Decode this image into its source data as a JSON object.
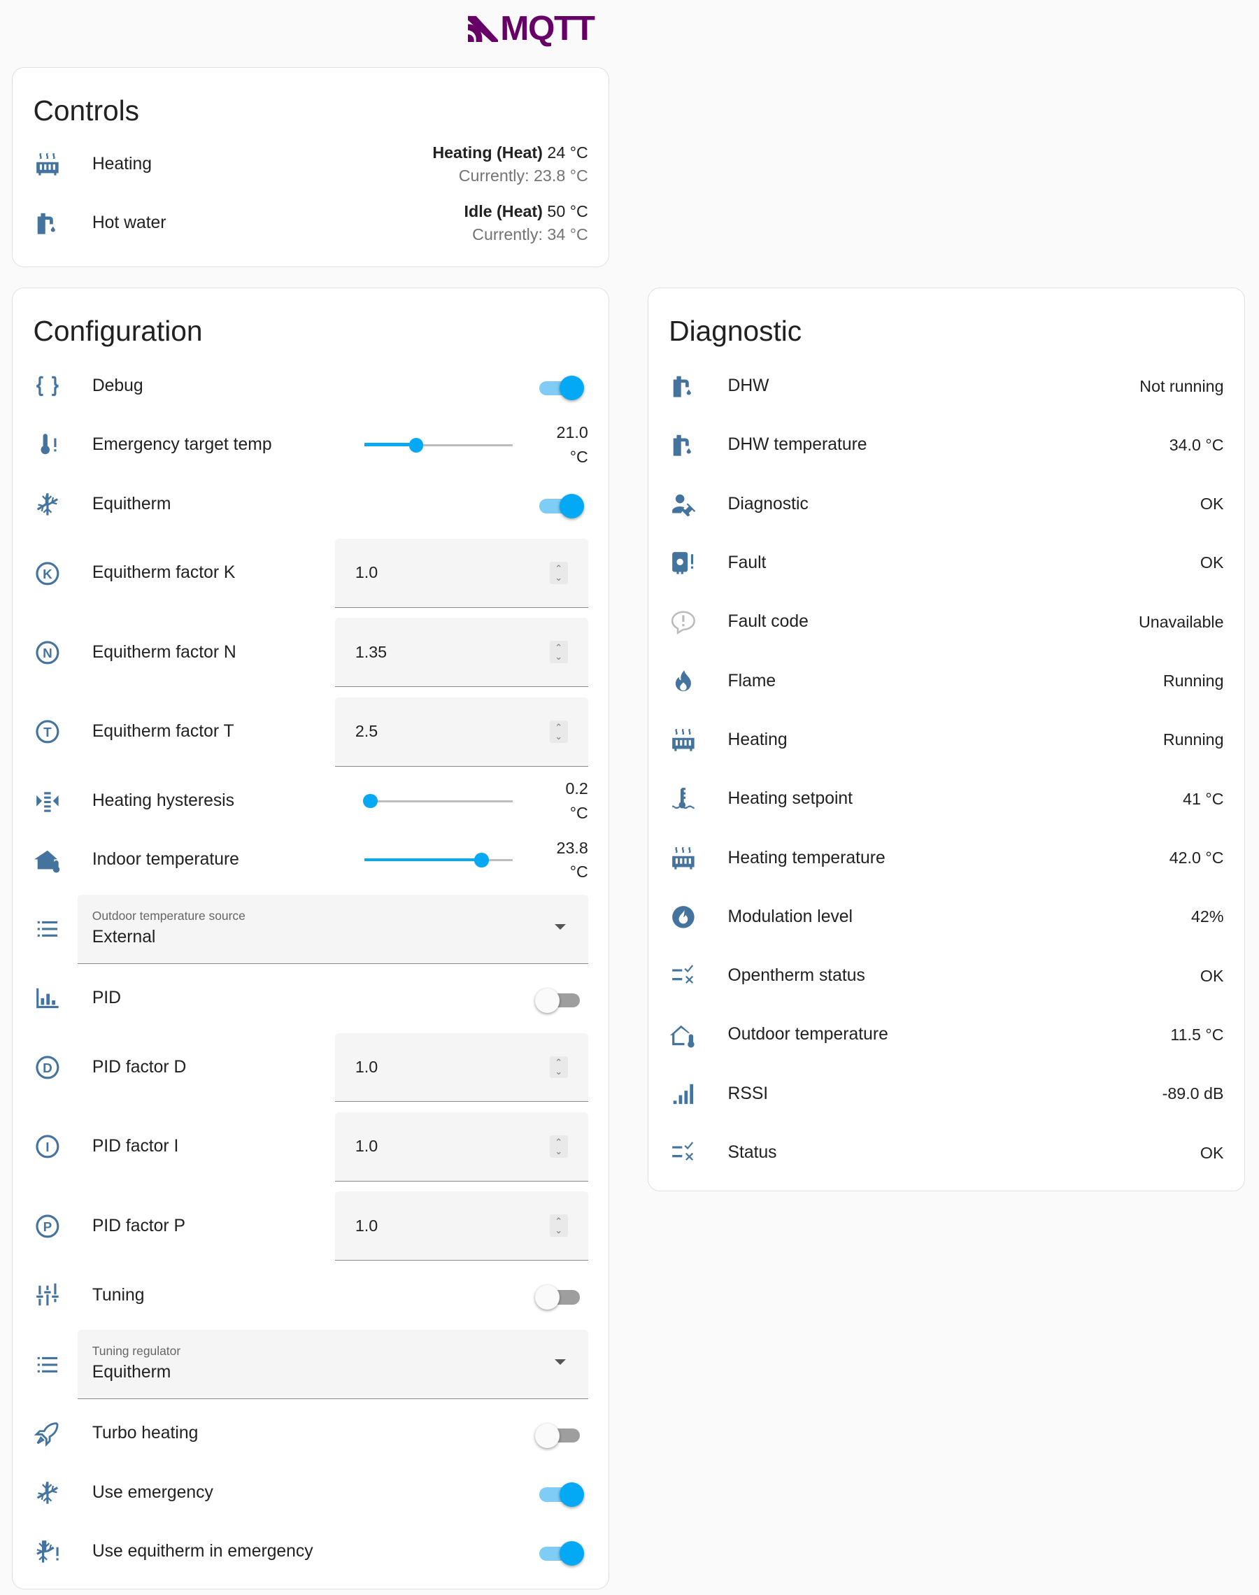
{
  "logo": {
    "text": "MQTT",
    "color": "#660066"
  },
  "icon_color": "#44739e",
  "accent": "#03a9f4",
  "controls": {
    "title": "Controls",
    "items": [
      {
        "icon": "radiator-icon",
        "name": "Heating",
        "state": "Heating (Heat)",
        "target": "24 °C",
        "current": "Currently: 23.8 °C"
      },
      {
        "icon": "water-pump-icon",
        "name": "Hot water",
        "state": "Idle (Heat)",
        "target": "50 °C",
        "current": "Currently: 34 °C"
      }
    ]
  },
  "configuration": {
    "title": "Configuration",
    "items": [
      {
        "type": "toggle",
        "icon": "code-braces-icon",
        "name": "Debug",
        "on": true
      },
      {
        "type": "slider",
        "icon": "thermometer-alert-icon",
        "name": "Emergency target temp",
        "value": "21.0 °C",
        "fraction": 0.35
      },
      {
        "type": "toggle",
        "icon": "sun-snowflake-icon",
        "name": "Equitherm",
        "on": true
      },
      {
        "type": "number",
        "icon": "alpha-k-circle-icon",
        "name": "Equitherm factor K",
        "value": "1.0"
      },
      {
        "type": "number",
        "icon": "alpha-n-circle-icon",
        "name": "Equitherm factor N",
        "value": "1.35"
      },
      {
        "type": "number",
        "icon": "alpha-t-circle-icon",
        "name": "Equitherm factor T",
        "value": "2.5"
      },
      {
        "type": "slider",
        "icon": "arrow-collapse-icon",
        "name": "Heating hysteresis",
        "value": "0.2 °C",
        "fraction": 0.04
      },
      {
        "type": "slider",
        "icon": "home-thermometer-icon",
        "name": "Indoor temperature",
        "value": "23.8 °C",
        "fraction": 0.79
      },
      {
        "type": "select",
        "icon": "format-list-icon",
        "label": "Outdoor temperature source",
        "value": "External"
      },
      {
        "type": "toggle",
        "icon": "chart-bar-icon",
        "name": "PID",
        "on": false
      },
      {
        "type": "number",
        "icon": "alpha-d-circle-icon",
        "name": "PID factor D",
        "value": "1.0"
      },
      {
        "type": "number",
        "icon": "alpha-i-circle-icon",
        "name": "PID factor I",
        "value": "1.0"
      },
      {
        "type": "number",
        "icon": "alpha-p-circle-icon",
        "name": "PID factor P",
        "value": "1.0"
      },
      {
        "type": "toggle",
        "icon": "tune-icon",
        "name": "Tuning",
        "on": false
      },
      {
        "type": "select",
        "icon": "format-list-icon",
        "label": "Tuning regulator",
        "value": "Equitherm"
      },
      {
        "type": "toggle",
        "icon": "rocket-icon",
        "name": "Turbo heating",
        "on": false
      },
      {
        "type": "toggle",
        "icon": "sun-snowflake-icon",
        "name": "Use emergency",
        "on": true
      },
      {
        "type": "toggle",
        "icon": "snowflake-alert-icon",
        "name": "Use equitherm in emergency",
        "on": true
      }
    ]
  },
  "diagnostic": {
    "title": "Diagnostic",
    "items": [
      {
        "icon": "water-pump-icon",
        "name": "DHW",
        "value": "Not running"
      },
      {
        "icon": "water-pump-icon",
        "name": "DHW temperature",
        "value": "34.0 °C"
      },
      {
        "icon": "account-wrench-icon",
        "name": "Diagnostic",
        "value": "OK"
      },
      {
        "icon": "water-boiler-alert-icon",
        "name": "Fault",
        "value": "OK"
      },
      {
        "icon": "comment-alert-icon",
        "name": "Fault code",
        "value": "Unavailable"
      },
      {
        "icon": "fire-icon",
        "name": "Flame",
        "value": "Running"
      },
      {
        "icon": "radiator-icon",
        "name": "Heating",
        "value": "Running"
      },
      {
        "icon": "coolant-temperature-icon",
        "name": "Heating setpoint",
        "value": "41 °C"
      },
      {
        "icon": "radiator-icon",
        "name": "Heating temperature",
        "value": "42.0 °C"
      },
      {
        "icon": "fire-circle-icon",
        "name": "Modulation level",
        "value": "42%"
      },
      {
        "icon": "list-status-icon",
        "name": "Opentherm status",
        "value": "OK"
      },
      {
        "icon": "home-thermometer-outline-icon",
        "name": "Outdoor temperature",
        "value": "11.5 °C"
      },
      {
        "icon": "signal-icon",
        "name": "RSSI",
        "value": "-89.0 dB"
      },
      {
        "icon": "list-status-icon",
        "name": "Status",
        "value": "OK"
      }
    ]
  }
}
